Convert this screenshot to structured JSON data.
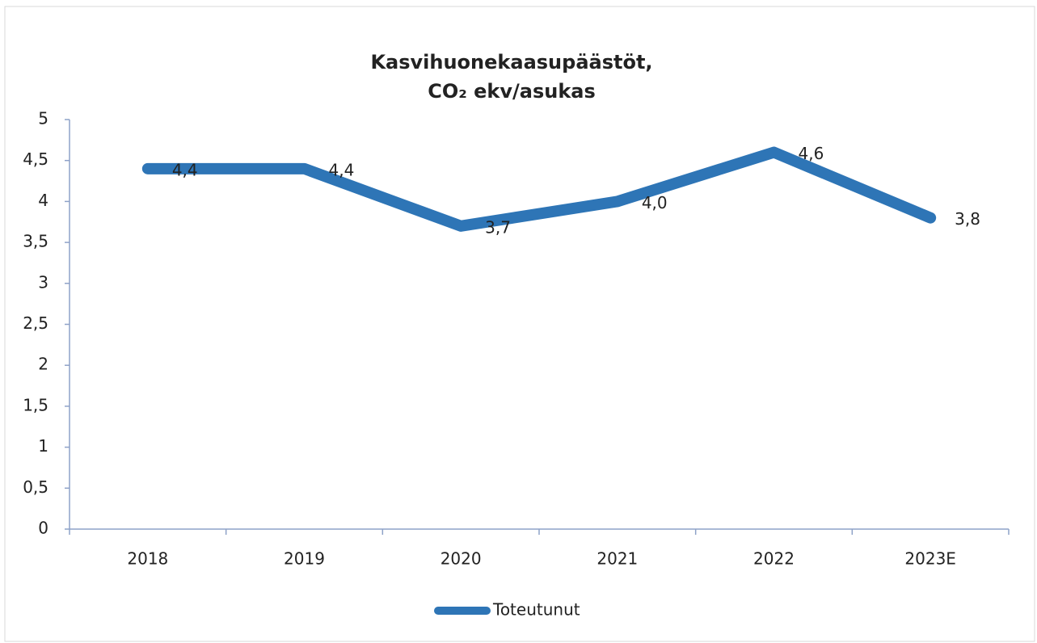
{
  "chart_data": {
    "type": "line",
    "title": [
      "Kasvihuonekaasupäästöt,",
      "CO₂ ekv/asukas"
    ],
    "categories": [
      "2018",
      "2019",
      "2020",
      "2021",
      "2022",
      "2023E"
    ],
    "series": [
      {
        "name": "Toteutunut",
        "color": "#2e75b6",
        "values": [
          4.4,
          4.4,
          3.7,
          4.0,
          4.6,
          3.8
        ],
        "value_labels": [
          "4,4",
          "4,4",
          "3,7",
          "4,0",
          "4,6",
          "3,8"
        ]
      }
    ],
    "ylim": [
      0,
      5
    ],
    "yticks": [
      0,
      {
        "value": 0.5,
        "label": "0,5"
      },
      1,
      {
        "value": 1.5,
        "label": "1,5"
      },
      2,
      {
        "value": 2.5,
        "label": "2,5"
      },
      3,
      {
        "value": 3.5,
        "label": "3,5"
      },
      4,
      {
        "value": 4.5,
        "label": "4,5"
      },
      5
    ],
    "legend": "bottom"
  }
}
